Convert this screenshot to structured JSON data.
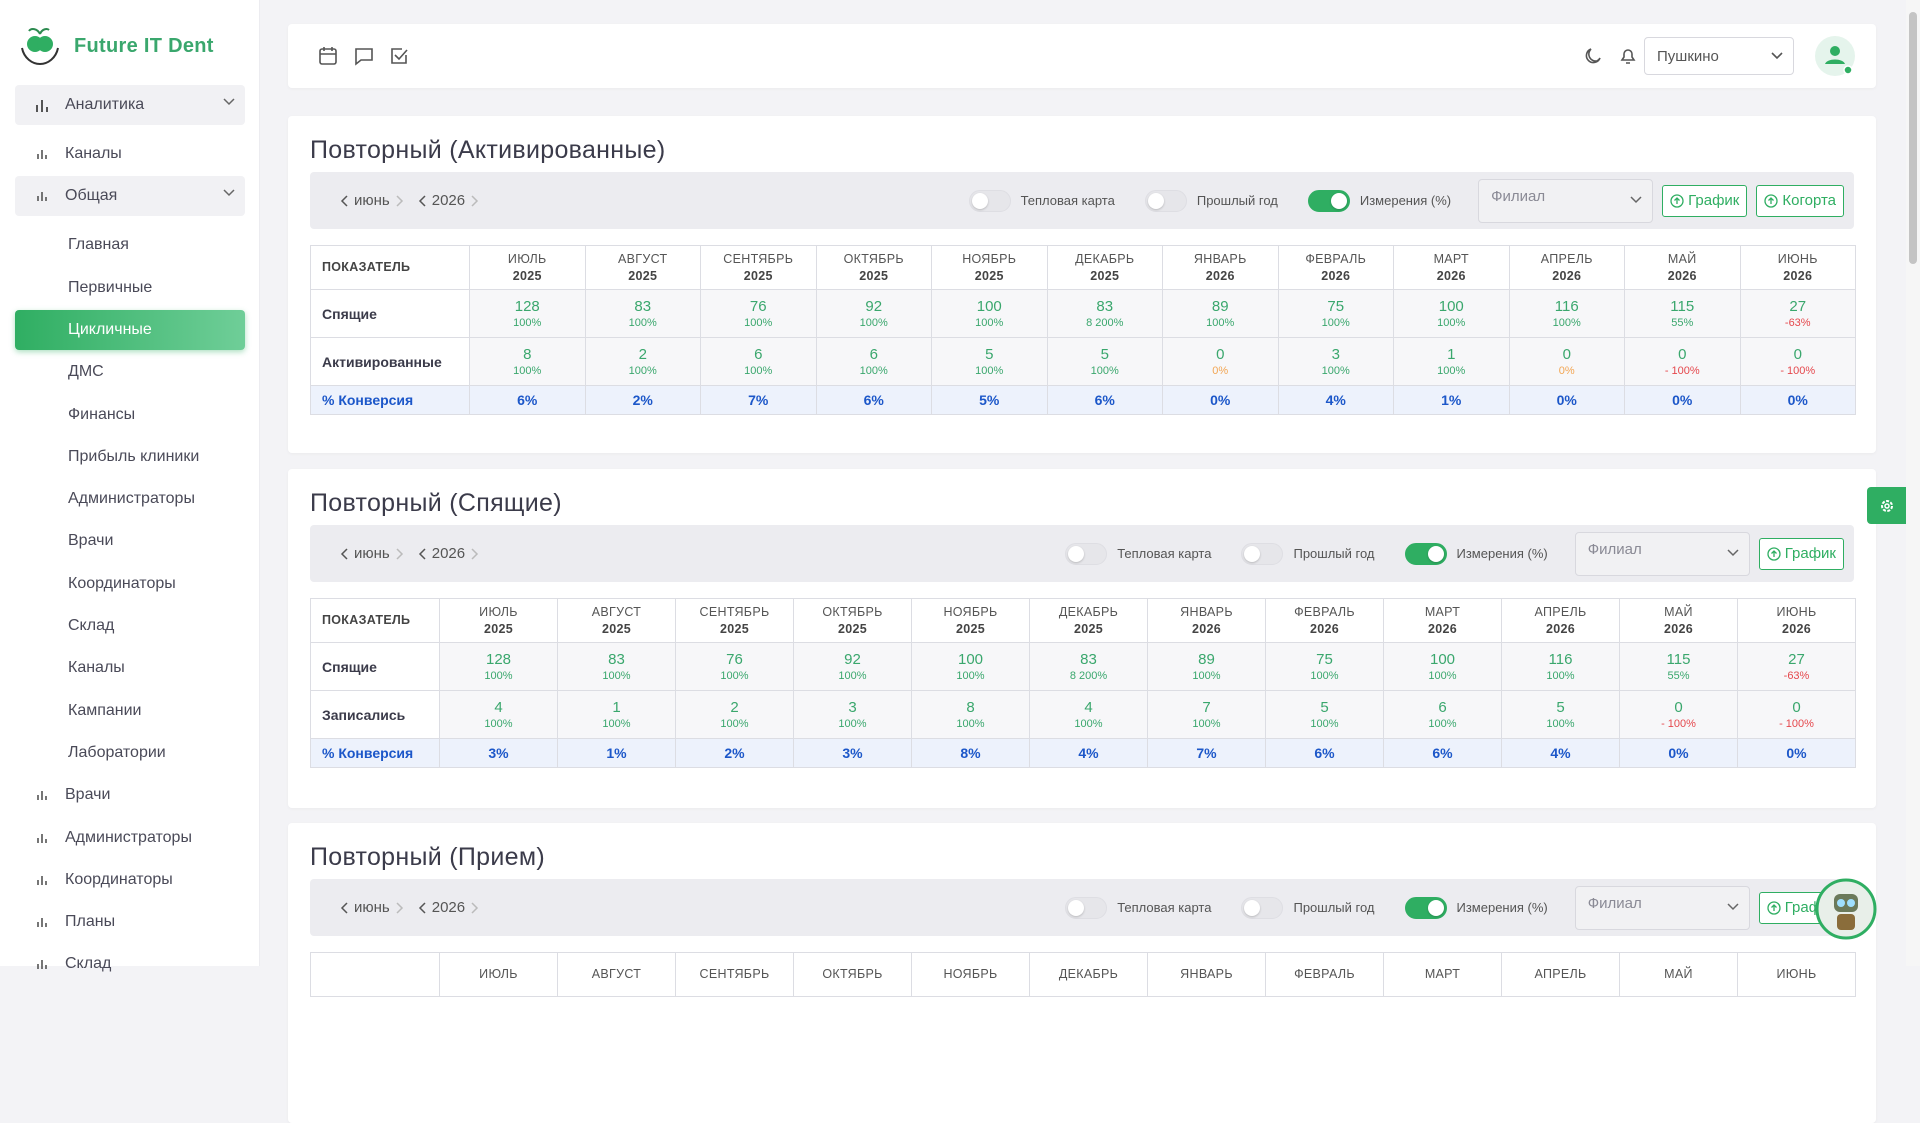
{
  "logo": "Future IT Dent",
  "sidebar": {
    "label": "Аналитика",
    "items": [
      {
        "label": "Каналы"
      },
      {
        "label": "Общая",
        "items": [
          {
            "label": "Главная"
          },
          {
            "label": "Первичные"
          },
          {
            "label": "Цикличные",
            "active": true
          },
          {
            "label": "ДМС"
          },
          {
            "label": "Финансы"
          },
          {
            "label": "Прибыль клиники"
          },
          {
            "label": "Администраторы"
          },
          {
            "label": "Врачи"
          },
          {
            "label": "Координаторы"
          },
          {
            "label": "Склад"
          },
          {
            "label": "Каналы"
          },
          {
            "label": "Кампании"
          },
          {
            "label": "Лаборатории"
          }
        ]
      },
      {
        "label": "Врачи"
      },
      {
        "label": "Администраторы"
      },
      {
        "label": "Координаторы"
      },
      {
        "label": "Планы"
      },
      {
        "label": "Склад"
      }
    ]
  },
  "header": {
    "branch": "Пушкино"
  },
  "sections": [
    {
      "title": "Повторный (Активированные)",
      "month": "июнь",
      "year": 2026,
      "toggles": [
        {
          "label": "Тепловая карта",
          "on": false
        },
        {
          "label": "Прошлый год",
          "on": false
        },
        {
          "label": "Измерения (%)",
          "on": true
        }
      ],
      "select": "Филиал",
      "buttons": [
        "График",
        "Когорта"
      ],
      "table": {
        "corner": "ПОКАЗАТЕЛЬ",
        "columns": [
          {
            "month": "ИЮЛЬ",
            "year": 2025
          },
          {
            "month": "АВГУСТ",
            "year": 2025
          },
          {
            "month": "СЕНТЯБРЬ",
            "year": 2025
          },
          {
            "month": "ОКТЯБРЬ",
            "year": 2025
          },
          {
            "month": "НОЯБРЬ",
            "year": 2025
          },
          {
            "month": "ДЕКАБРЬ",
            "year": 2025
          },
          {
            "month": "ЯНВАРЬ",
            "year": 2026
          },
          {
            "month": "ФЕВРАЛЬ",
            "year": 2026
          },
          {
            "month": "МАРТ",
            "year": 2026
          },
          {
            "month": "АПРЕЛЬ",
            "year": 2026
          },
          {
            "month": "МАЙ",
            "year": 2026
          },
          {
            "month": "ИЮНЬ",
            "year": 2026
          }
        ],
        "rows": [
          {
            "label": "Спящие",
            "cells": [
              {
                "value": 128,
                "change": "100%"
              },
              {
                "value": 83,
                "change": "100%"
              },
              {
                "value": 76,
                "change": "100%"
              },
              {
                "value": 92,
                "change": "100%"
              },
              {
                "value": 100,
                "change": "100%"
              },
              {
                "value": 83,
                "change": "8 200%"
              },
              {
                "value": 89,
                "change": "100%"
              },
              {
                "value": 75,
                "change": "100%"
              },
              {
                "value": 100,
                "change": "100%"
              },
              {
                "value": 116,
                "change": "100%"
              },
              {
                "value": 115,
                "change": "55%"
              },
              {
                "value": 27,
                "change": "-63%"
              }
            ]
          },
          {
            "label": "Активированные",
            "cells": [
              {
                "value": 8,
                "change": "100%"
              },
              {
                "value": 2,
                "change": "100%"
              },
              {
                "value": 6,
                "change": "100%"
              },
              {
                "value": 6,
                "change": "100%"
              },
              {
                "value": 5,
                "change": "100%"
              },
              {
                "value": 5,
                "change": "100%"
              },
              {
                "value": 0,
                "change": "0%"
              },
              {
                "value": 3,
                "change": "100%"
              },
              {
                "value": 1,
                "change": "100%"
              },
              {
                "value": 0,
                "change": "0%"
              },
              {
                "value": 0,
                "change": "- 100%"
              },
              {
                "value": 0,
                "change": "- 100%"
              }
            ]
          }
        ],
        "total": {
          "label": "% Конверсия",
          "cells": [
            "6%",
            "2%",
            "7%",
            "6%",
            "5%",
            "6%",
            "0%",
            "4%",
            "1%",
            "0%",
            "0%",
            "0%"
          ]
        }
      }
    },
    {
      "title": "Повторный (Спящие)",
      "month": "июнь",
      "year": 2026,
      "toggles": [
        {
          "label": "Тепловая карта",
          "on": false
        },
        {
          "label": "Прошлый год",
          "on": false
        },
        {
          "label": "Измерения (%)",
          "on": true
        }
      ],
      "select": "Филиал",
      "buttons": [
        "График"
      ],
      "table": {
        "corner": "ПОКАЗАТЕЛЬ",
        "columns": [
          {
            "month": "ИЮЛЬ",
            "year": 2025
          },
          {
            "month": "АВГУСТ",
            "year": 2025
          },
          {
            "month": "СЕНТЯБРЬ",
            "year": 2025
          },
          {
            "month": "ОКТЯБРЬ",
            "year": 2025
          },
          {
            "month": "НОЯБРЬ",
            "year": 2025
          },
          {
            "month": "ДЕКАБРЬ",
            "year": 2025
          },
          {
            "month": "ЯНВАРЬ",
            "year": 2026
          },
          {
            "month": "ФЕВРАЛЬ",
            "year": 2026
          },
          {
            "month": "МАРТ",
            "year": 2026
          },
          {
            "month": "АПРЕЛЬ",
            "year": 2026
          },
          {
            "month": "МАЙ",
            "year": 2026
          },
          {
            "month": "ИЮНЬ",
            "year": 2026
          }
        ],
        "rows": [
          {
            "label": "Спящие",
            "cells": [
              {
                "value": 128,
                "change": "100%"
              },
              {
                "value": 83,
                "change": "100%"
              },
              {
                "value": 76,
                "change": "100%"
              },
              {
                "value": 92,
                "change": "100%"
              },
              {
                "value": 100,
                "change": "100%"
              },
              {
                "value": 83,
                "change": "8 200%"
              },
              {
                "value": 89,
                "change": "100%"
              },
              {
                "value": 75,
                "change": "100%"
              },
              {
                "value": 100,
                "change": "100%"
              },
              {
                "value": 116,
                "change": "100%"
              },
              {
                "value": 115,
                "change": "55%"
              },
              {
                "value": 27,
                "change": "-63%"
              }
            ]
          },
          {
            "label": "Записались",
            "cells": [
              {
                "value": 4,
                "change": "100%"
              },
              {
                "value": 1,
                "change": "100%"
              },
              {
                "value": 2,
                "change": "100%"
              },
              {
                "value": 3,
                "change": "100%"
              },
              {
                "value": 8,
                "change": "100%"
              },
              {
                "value": 4,
                "change": "100%"
              },
              {
                "value": 7,
                "change": "100%"
              },
              {
                "value": 5,
                "change": "100%"
              },
              {
                "value": 6,
                "change": "100%"
              },
              {
                "value": 5,
                "change": "100%"
              },
              {
                "value": 0,
                "change": "- 100%"
              },
              {
                "value": 0,
                "change": "- 100%"
              }
            ]
          }
        ],
        "total": {
          "label": "% Конверсия",
          "cells": [
            "3%",
            "1%",
            "2%",
            "3%",
            "8%",
            "4%",
            "7%",
            "6%",
            "6%",
            "4%",
            "0%",
            "0%"
          ]
        }
      }
    },
    {
      "title": "Повторный (Прием)",
      "month": "июнь",
      "year": 2026,
      "toggles": [
        {
          "label": "Тепловая карта",
          "on": false
        },
        {
          "label": "Прошлый год",
          "on": false
        },
        {
          "label": "Измерения (%)",
          "on": true
        }
      ],
      "select": "Филиал",
      "buttons": [
        "График"
      ],
      "table": {
        "columns": [
          {
            "month": "ИЮЛЬ"
          },
          {
            "month": "АВГУСТ"
          },
          {
            "month": "СЕНТЯБРЬ"
          },
          {
            "month": "ОКТЯБРЬ"
          },
          {
            "month": "НОЯБРЬ"
          },
          {
            "month": "ДЕКАБРЬ"
          },
          {
            "month": "ЯНВАРЬ"
          },
          {
            "month": "ФЕВРАЛЬ"
          },
          {
            "month": "МАРТ"
          },
          {
            "month": "АПРЕЛЬ"
          },
          {
            "month": "МАЙ"
          },
          {
            "month": "ИЮНЬ"
          }
        ]
      }
    }
  ]
}
